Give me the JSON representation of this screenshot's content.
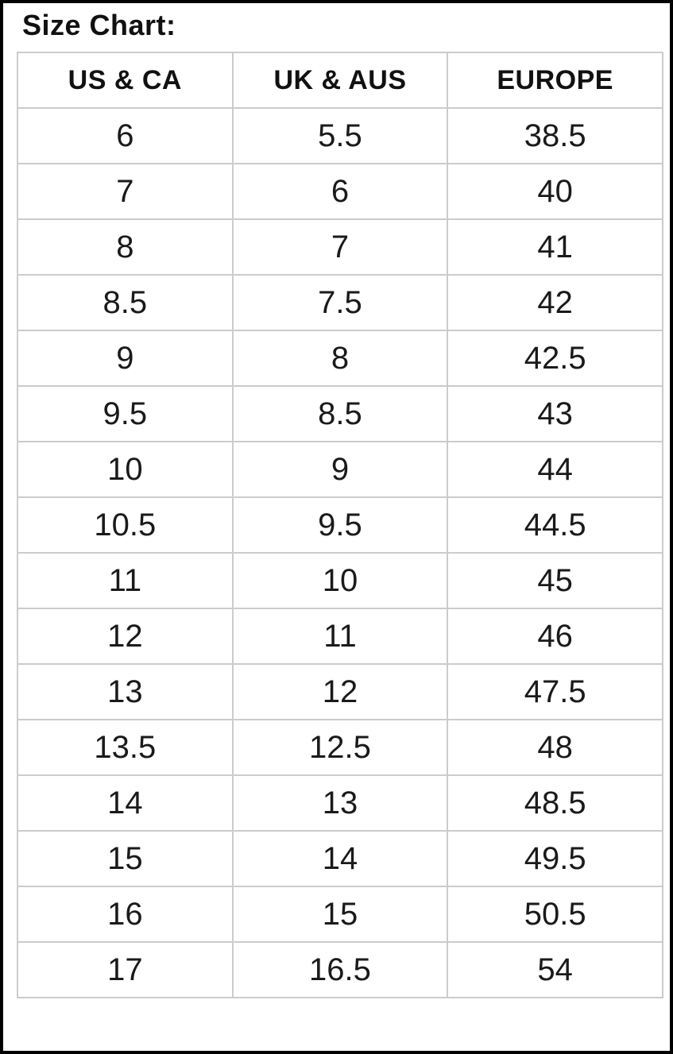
{
  "page": {
    "title": "Size Chart:"
  },
  "chart_data": {
    "type": "table",
    "title": "Size Chart:",
    "columns": [
      "US & CA",
      "UK & AUS",
      "EUROPE"
    ],
    "rows": [
      [
        "6",
        "5.5",
        "38.5"
      ],
      [
        "7",
        "6",
        "40"
      ],
      [
        "8",
        "7",
        "41"
      ],
      [
        "8.5",
        "7.5",
        "42"
      ],
      [
        "9",
        "8",
        "42.5"
      ],
      [
        "9.5",
        "8.5",
        "43"
      ],
      [
        "10",
        "9",
        "44"
      ],
      [
        "10.5",
        "9.5",
        "44.5"
      ],
      [
        "11",
        "10",
        "45"
      ],
      [
        "12",
        "11",
        "46"
      ],
      [
        "13",
        "12",
        "47.5"
      ],
      [
        "13.5",
        "12.5",
        "48"
      ],
      [
        "14",
        "13",
        "48.5"
      ],
      [
        "15",
        "14",
        "49.5"
      ],
      [
        "16",
        "15",
        "50.5"
      ],
      [
        "17",
        "16.5",
        "54"
      ]
    ]
  },
  "colors": {
    "frame_border": "#000000",
    "table_outer_border": "#9b9b9b",
    "grid_line": "#cccccc",
    "text": "#111111",
    "background": "#ffffff"
  }
}
